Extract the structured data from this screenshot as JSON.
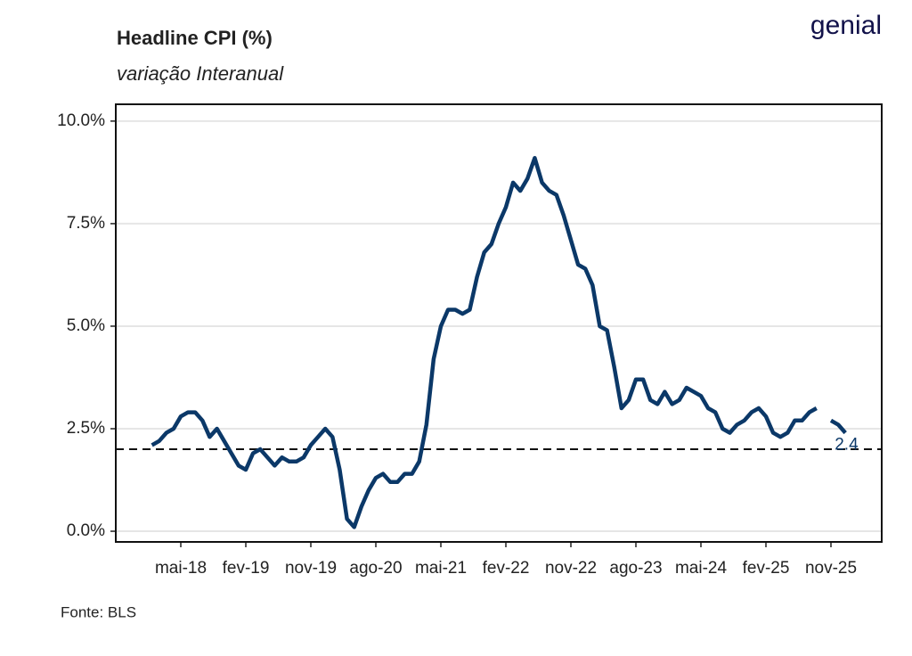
{
  "logo": "genial",
  "chart_data": {
    "type": "line",
    "title": "Headline CPI (%)",
    "subtitle": "variação Interanual",
    "source": "Fonte: BLS",
    "categories": [
      null,
      null,
      null,
      null,
      "mai-18",
      null,
      null,
      null,
      null,
      null,
      null,
      null,
      null,
      "fev-19",
      null,
      null,
      null,
      null,
      null,
      null,
      null,
      null,
      "nov-19",
      null,
      null,
      null,
      null,
      null,
      null,
      null,
      null,
      "ago-20",
      null,
      null,
      null,
      null,
      null,
      null,
      null,
      null,
      "mai-21",
      null,
      null,
      null,
      null,
      null,
      null,
      null,
      null,
      "fev-22",
      null,
      null,
      null,
      null,
      null,
      null,
      null,
      null,
      "nov-22",
      null,
      null,
      null,
      null,
      null,
      null,
      null,
      null,
      "ago-23",
      null,
      null,
      null,
      null,
      null,
      null,
      null,
      null,
      "mai-24",
      null,
      null,
      null,
      null,
      null,
      null,
      null,
      null,
      "fev-25",
      null,
      null,
      null,
      null,
      null,
      null,
      null,
      null,
      "nov-25",
      null,
      null
    ],
    "series": [
      {
        "color": "#0b3868",
        "values": [
          2.1,
          2.2,
          2.4,
          2.5,
          2.8,
          2.9,
          2.9,
          2.7,
          2.3,
          2.5,
          2.2,
          1.9,
          1.6,
          1.5,
          1.9,
          2.0,
          1.8,
          1.6,
          1.8,
          1.7,
          1.7,
          1.8,
          2.1,
          2.3,
          2.5,
          2.3,
          1.5,
          0.3,
          0.1,
          0.6,
          1.0,
          1.3,
          1.4,
          1.2,
          1.2,
          1.4,
          1.4,
          1.7,
          2.6,
          4.2,
          5.0,
          5.4,
          5.4,
          5.3,
          5.4,
          6.2,
          6.8,
          7.0,
          7.5,
          7.9,
          8.5,
          8.3,
          8.6,
          9.1,
          8.5,
          8.3,
          8.2,
          7.7,
          7.1,
          6.5,
          6.4,
          6.0,
          5.0,
          4.9,
          4.0,
          3.0,
          3.2,
          3.7,
          3.7,
          3.2,
          3.1,
          3.4,
          3.1,
          3.2,
          3.5,
          3.4,
          3.3,
          3.0,
          2.9,
          2.5,
          2.4,
          2.6,
          2.7,
          2.9,
          3.0,
          2.8,
          2.4,
          2.3,
          2.4,
          2.7,
          2.7,
          2.9,
          3.0,
          null,
          2.7,
          2.6,
          2.4
        ]
      }
    ],
    "reference_line": 2.0,
    "ylim": [
      -0.26,
      10.41
    ],
    "yticks": [
      {
        "value": 0,
        "label": "0.0%"
      },
      {
        "value": 2.5,
        "label": "2.5%"
      },
      {
        "value": 5,
        "label": "5.0%"
      },
      {
        "value": 7.5,
        "label": "7.5%"
      },
      {
        "value": 10,
        "label": "10.0%"
      }
    ],
    "grid": true
  }
}
